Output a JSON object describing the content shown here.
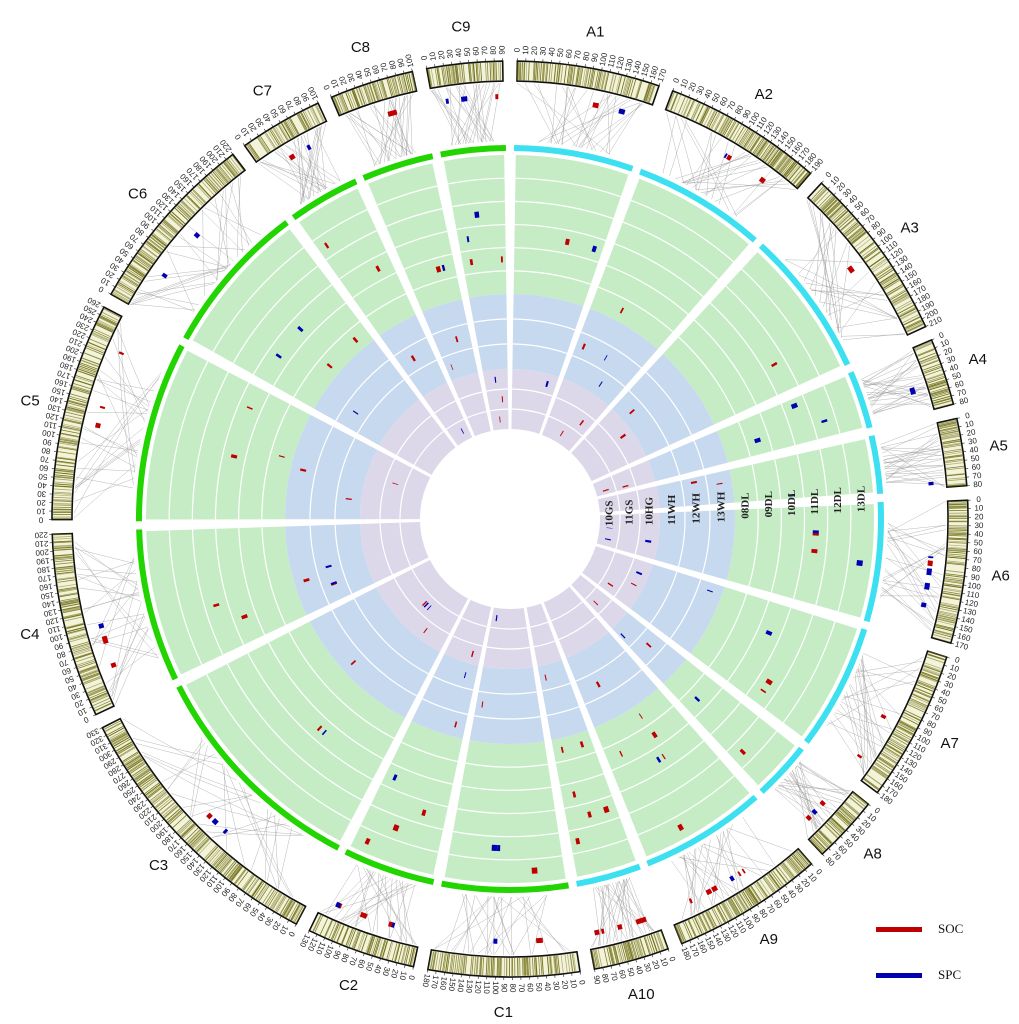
{
  "colors": {
    "soc": "#c00000",
    "spc": "#0000b0",
    "group_a_band": "#3ce0f0",
    "group_c_band": "#22d400",
    "outer_track_fill": "#c6ecc6",
    "middle_track_fill": "#c7d9ef",
    "inner_track_fill": "#dcd8ea",
    "ideogram_stripe": "#6b6b12",
    "link": "#9a9a9a"
  },
  "chromosomes": [
    {
      "name": "A1",
      "length": 170,
      "group": "A",
      "tick_step": 10
    },
    {
      "name": "A2",
      "length": 190,
      "group": "A",
      "tick_step": 10
    },
    {
      "name": "A3",
      "length": 210,
      "group": "A",
      "tick_step": 10
    },
    {
      "name": "A4",
      "length": 80,
      "group": "A",
      "tick_step": 10
    },
    {
      "name": "A5",
      "length": 80,
      "group": "A",
      "tick_step": 10
    },
    {
      "name": "A6",
      "length": 170,
      "group": "A",
      "tick_step": 10
    },
    {
      "name": "A7",
      "length": 180,
      "group": "A",
      "tick_step": 10
    },
    {
      "name": "A8",
      "length": 80,
      "group": "A",
      "tick_step": 10
    },
    {
      "name": "A9",
      "length": 180,
      "group": "A",
      "tick_step": 10
    },
    {
      "name": "A10",
      "length": 90,
      "group": "A",
      "tick_step": 10
    },
    {
      "name": "C1",
      "length": 180,
      "group": "C",
      "tick_step": 10
    },
    {
      "name": "C2",
      "length": 130,
      "group": "C",
      "tick_step": 10
    },
    {
      "name": "C3",
      "length": 330,
      "group": "C",
      "tick_step": 10
    },
    {
      "name": "C4",
      "length": 220,
      "group": "C",
      "tick_step": 10
    },
    {
      "name": "C5",
      "length": 260,
      "group": "C",
      "tick_step": 10
    },
    {
      "name": "C6",
      "length": 220,
      "group": "C",
      "tick_step": 10
    },
    {
      "name": "C7",
      "length": 100,
      "group": "C",
      "tick_step": 10
    },
    {
      "name": "C8",
      "length": 100,
      "group": "C",
      "tick_step": 10
    },
    {
      "name": "C9",
      "length": 90,
      "group": "C",
      "tick_step": 10
    }
  ],
  "tracks": {
    "outer": [
      "08DL",
      "09DL",
      "10DL",
      "11DL",
      "12DL",
      "13DL"
    ],
    "middle": [
      "11WH",
      "12WH",
      "13WH"
    ],
    "inner": [
      "10GS",
      "11GS",
      "10HG"
    ]
  },
  "legend": {
    "soc_label": "SOC",
    "spc_label": "SPC"
  }
}
